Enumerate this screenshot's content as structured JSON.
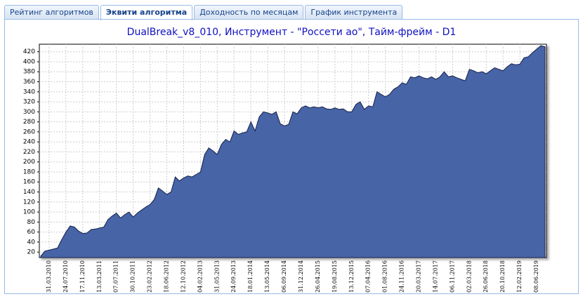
{
  "tabs": [
    "Рейтинг алгоритмов",
    "Эквити алгоритма",
    "Доходность по месяцам",
    "График инструмента"
  ],
  "chart_data": {
    "type": "area",
    "title": "DualBreak_v8_010, Инструмент - \"Россети ао\", Тайм-фрейм - D1",
    "categories": [
      null,
      null,
      "31.03.2010",
      null,
      null,
      null,
      "24.07.2010",
      null,
      null,
      null,
      "17.11.2010",
      null,
      null,
      null,
      "13.03.2011",
      null,
      null,
      null,
      "07.07.2011",
      null,
      null,
      null,
      "30.10.2011",
      null,
      null,
      null,
      "23.02.2012",
      null,
      null,
      null,
      "18.06.2012",
      null,
      null,
      null,
      "12.10.2012",
      null,
      null,
      null,
      "04.02.2013",
      null,
      null,
      null,
      "31.05.2013",
      null,
      null,
      null,
      "24.09.2013",
      null,
      null,
      null,
      "18.01.2014",
      null,
      null,
      null,
      "13.05.2014",
      null,
      null,
      null,
      "06.09.2014",
      null,
      null,
      null,
      "31.12.2014",
      null,
      null,
      null,
      "26.04.2015",
      null,
      null,
      null,
      "19.08.2015",
      null,
      null,
      null,
      "13.12.2015",
      null,
      null,
      null,
      "07.04.2016",
      null,
      null,
      null,
      "01.08.2016",
      null,
      null,
      null,
      "24.11.2016",
      null,
      null,
      null,
      "20.03.2017",
      null,
      null,
      null,
      "14.07.2017",
      null,
      null,
      null,
      "06.11.2017",
      null,
      null,
      null,
      "02.03.2018",
      null,
      null,
      null,
      "26.06.2018",
      null,
      null,
      null,
      "20.10.2018",
      null,
      null,
      null,
      "12.02.2019",
      null,
      null,
      null,
      "08.06.2019",
      null,
      null
    ],
    "values": [
      12,
      22,
      24,
      26,
      28,
      45,
      60,
      72,
      70,
      62,
      57,
      58,
      65,
      66,
      68,
      70,
      85,
      92,
      98,
      88,
      95,
      100,
      90,
      98,
      104,
      110,
      115,
      125,
      148,
      142,
      135,
      140,
      170,
      162,
      168,
      172,
      170,
      175,
      180,
      215,
      228,
      222,
      215,
      235,
      245,
      240,
      262,
      255,
      258,
      260,
      280,
      262,
      290,
      300,
      298,
      295,
      300,
      276,
      272,
      275,
      300,
      296,
      308,
      312,
      308,
      310,
      308,
      310,
      306,
      305,
      308,
      305,
      306,
      300,
      300,
      315,
      320,
      305,
      312,
      310,
      340,
      335,
      330,
      335,
      345,
      350,
      358,
      355,
      370,
      368,
      372,
      368,
      366,
      370,
      365,
      370,
      380,
      370,
      372,
      368,
      365,
      362,
      385,
      382,
      378,
      380,
      376,
      382,
      388,
      385,
      382,
      390,
      396,
      394,
      395,
      408,
      410,
      418,
      425,
      432,
      430
    ],
    "color": "#4664a6",
    "ylim": [
      9,
      435
    ],
    "yticks": [
      20,
      40,
      60,
      80,
      100,
      120,
      140,
      160,
      180,
      200,
      220,
      240,
      260,
      280,
      300,
      320,
      340,
      360,
      380,
      400,
      420
    ],
    "grid": true
  }
}
